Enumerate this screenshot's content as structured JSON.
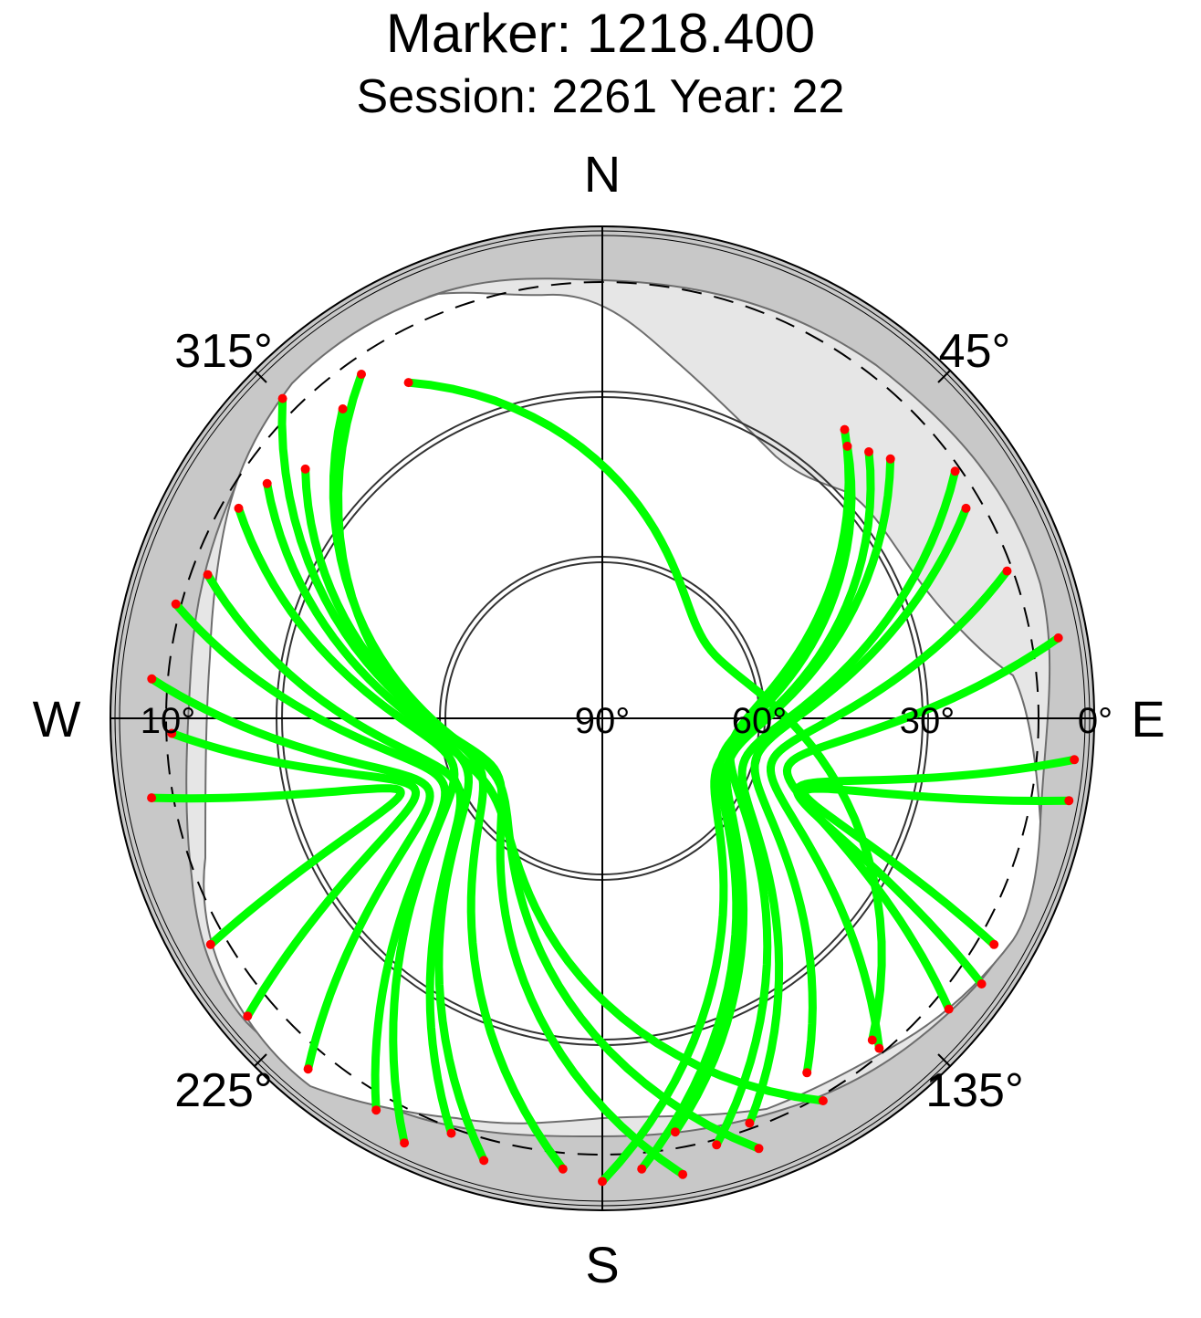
{
  "title": "Marker: 1218.400",
  "subtitle": "Session: 2261 Year: 22",
  "directions": {
    "north": "N",
    "south": "S",
    "east": "E",
    "west": "W"
  },
  "azimuth_labels": {
    "ne": "45°",
    "se": "135°",
    "sw": "225°",
    "nw": "315°"
  },
  "elevation_labels": {
    "west": "10°",
    "zenith": "90°",
    "e60": "60°",
    "e30": "30°",
    "e0": "0°"
  },
  "colors": {
    "track": "#00ff00",
    "track_end": "#ff0000",
    "outer_band": "#c8c8c8",
    "mask": "#e6e6e6",
    "mask_edge": "#6e6e6e"
  },
  "chart_data": {
    "type": "scatter",
    "projection": "polar sky plot (azimuth clockwise from north, elevation 0° at rim to 90° at center)",
    "azimuth_ticks": [
      45,
      135,
      225,
      315
    ],
    "elevation_ticks": [
      0,
      10,
      30,
      60,
      90
    ],
    "series": [
      {
        "az_el_tracks": [
          {
            "start": [
              300,
              12
            ],
            "end": [
              205,
              3
            ]
          },
          {
            "start": [
              305,
              14
            ],
            "end": [
              195,
              5
            ]
          },
          {
            "start": [
              310,
              18
            ],
            "end": [
              185,
              6
            ]
          },
          {
            "start": [
              315,
              6
            ],
            "end": [
              170,
              4
            ]
          },
          {
            "start": [
              320,
              15
            ],
            "end": [
              160,
              5
            ]
          },
          {
            "start": [
              325,
              12
            ],
            "end": [
              150,
              8
            ]
          },
          {
            "start": [
              330,
              18
            ],
            "end": [
              140,
              12
            ]
          },
          {
            "start": [
              290,
              12
            ],
            "end": [
              200,
              8
            ]
          },
          {
            "start": [
              285,
              8
            ],
            "end": [
              210,
              6
            ]
          },
          {
            "start": [
              275,
              6
            ],
            "end": [
              220,
              5
            ]
          },
          {
            "start": [
              268,
              10
            ],
            "end": [
              230,
              4
            ]
          },
          {
            "start": [
              260,
              5
            ],
            "end": [
              240,
              6
            ]
          },
          {
            "start": [
              40,
              20
            ],
            "end": [
              165,
              8
            ]
          },
          {
            "start": [
              42,
              22
            ],
            "end": [
              175,
              6
            ]
          },
          {
            "start": [
              45,
              20
            ],
            "end": [
              180,
              4
            ]
          },
          {
            "start": [
              48,
              18
            ],
            "end": [
              170,
              12
            ]
          },
          {
            "start": [
              55,
              10
            ],
            "end": [
              160,
              10
            ]
          },
          {
            "start": [
              60,
              12
            ],
            "end": [
              150,
              14
            ]
          },
          {
            "start": [
              70,
              10
            ],
            "end": [
              140,
              10
            ]
          },
          {
            "start": [
              80,
              4
            ],
            "end": [
              130,
              6
            ]
          },
          {
            "start": [
              95,
              2
            ],
            "end": [
              125,
              4
            ]
          },
          {
            "start": [
              100,
              2
            ],
            "end": [
              120,
              6
            ]
          }
        ]
      }
    ]
  }
}
